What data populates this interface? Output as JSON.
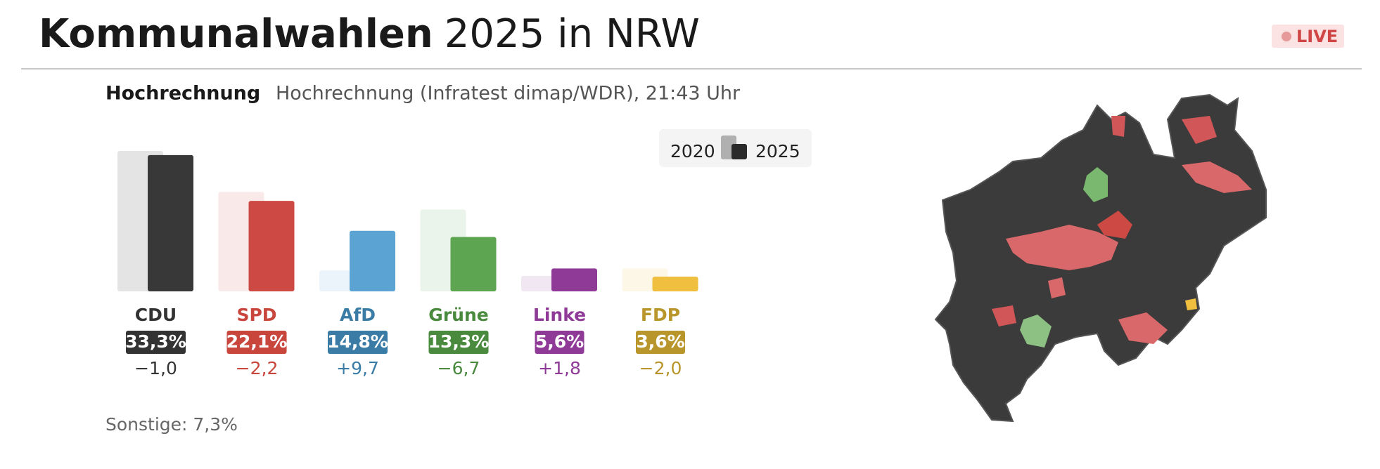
{
  "header": {
    "title_bold": "Kommunalwahlen",
    "title_rest": "2025 in NRW",
    "live": "LIVE"
  },
  "chart_data": {
    "type": "bar",
    "label": "Hochrechnung",
    "subtitle": "Hochrechnung (Infratest dimap/WDR), 21:43 Uhr",
    "categories": [
      "CDU",
      "SPD",
      "AfD",
      "Grüne",
      "Linke",
      "FDP"
    ],
    "colors": [
      "#383838",
      "#cc4a43",
      "#5aa3d3",
      "#5da551",
      "#8e3a96",
      "#f0bf3f"
    ],
    "label_colors": [
      "#333333",
      "#c9463d",
      "#3a7ca5",
      "#4a8a3e",
      "#8e3a96",
      "#b9962c"
    ],
    "series": [
      {
        "name": "2020",
        "color": "#b0b0b0",
        "values": [
          34.3,
          24.3,
          5.1,
          20.0,
          3.8,
          5.6
        ]
      },
      {
        "name": "2025",
        "color": "#2a2a2a",
        "values": [
          33.3,
          22.1,
          14.8,
          13.3,
          5.6,
          3.6
        ],
        "value_labels": [
          "33,3%",
          "22,1%",
          "14,8%",
          "13,3%",
          "5,6%",
          "3,6%"
        ]
      }
    ],
    "changes": [
      -1.0,
      -2.2,
      9.7,
      -6.7,
      1.8,
      -2.0
    ],
    "change_labels": [
      "−1,0",
      "−2,2",
      "+9,7",
      "−6,7",
      "+1,8",
      "−2,0"
    ],
    "note": "Sonstige: 7,3%"
  }
}
